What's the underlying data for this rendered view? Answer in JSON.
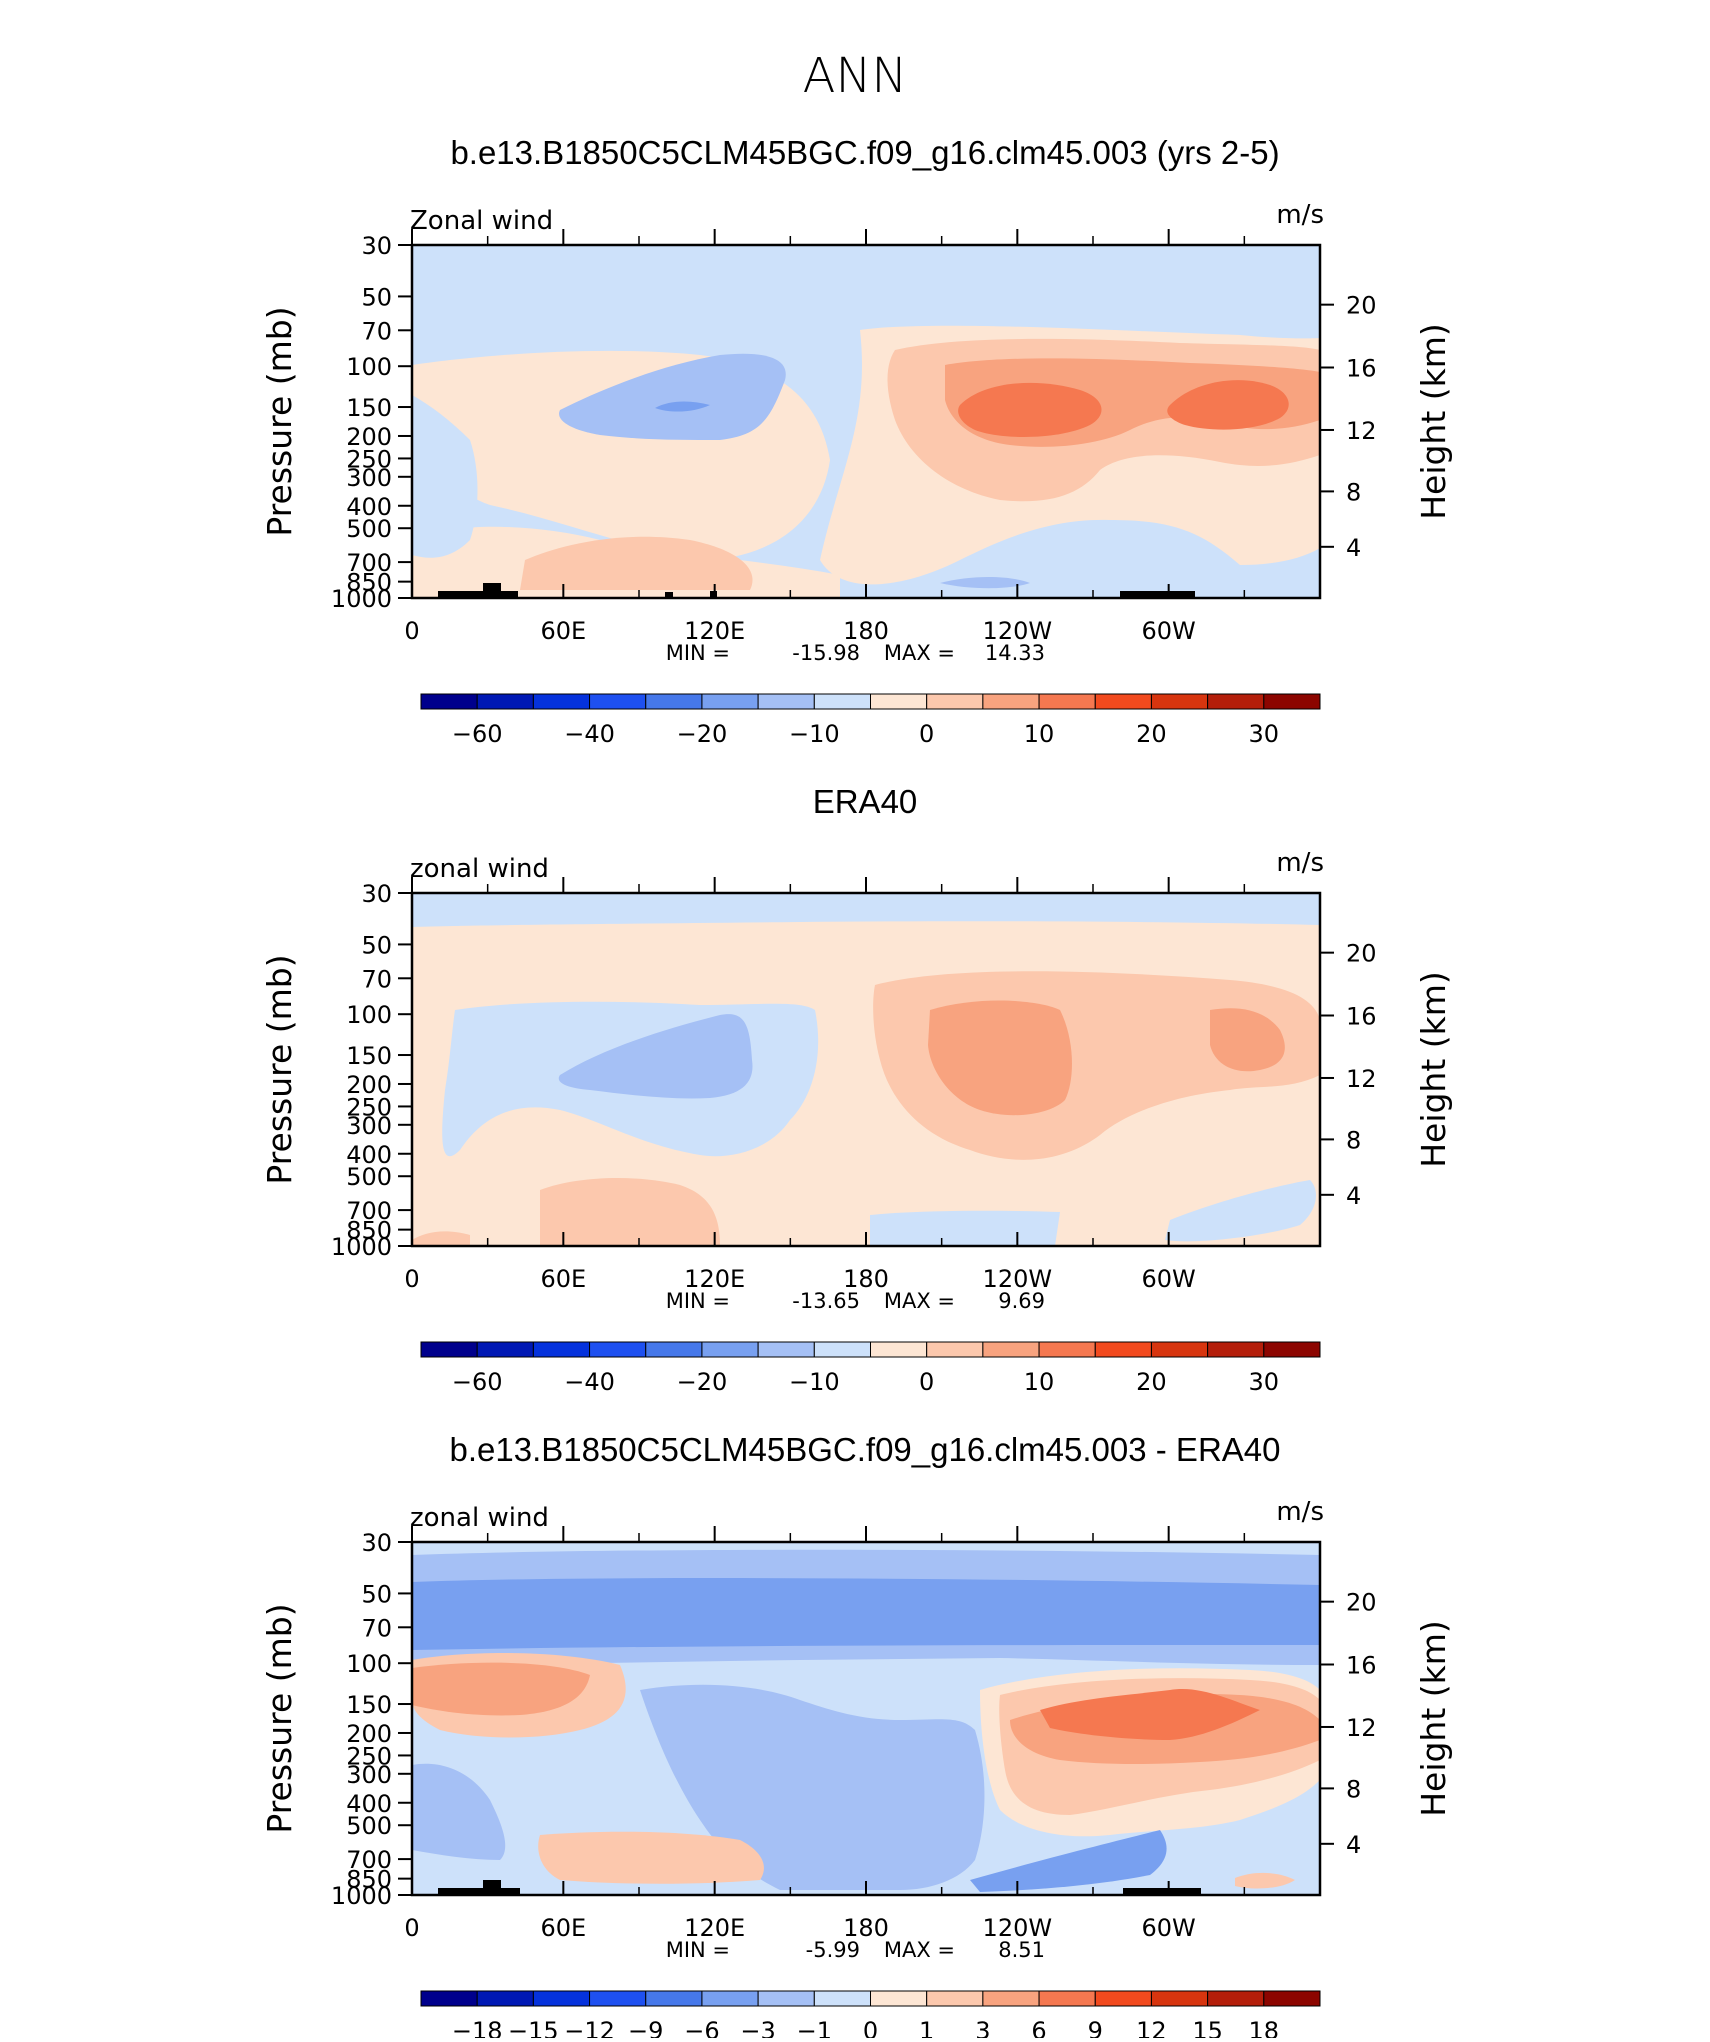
{
  "page_title": "ANN",
  "chart_data": [
    {
      "type": "heatmap",
      "title": "b.e13.B1850C5CLM45BGC.f09_g16.clm45.003 (yrs 2-5)",
      "variable": "Zonal wind",
      "units": "m/s",
      "ylabel": "Pressure (mb)",
      "ylabel_right": "Height (km)",
      "x_ticks": [
        "0",
        "60E",
        "120E",
        "180",
        "120W",
        "60W"
      ],
      "y_ticks": [
        "30",
        "50",
        "70",
        "100",
        "150",
        "200",
        "250",
        "300",
        "400",
        "500",
        "700",
        "850",
        "1000"
      ],
      "y_ticks_right": [
        "20",
        "16",
        "12",
        "8",
        "4"
      ],
      "min": "-15.98",
      "max": "14.33",
      "stats_text": {
        "min_label": "MIN =",
        "min": "-15.98",
        "max_label": "MAX =",
        "max": "14.33"
      },
      "colorbar": {
        "levels": [
          -70,
          -60,
          -50,
          -40,
          -30,
          -20,
          -15,
          -10,
          -5,
          0,
          5,
          10,
          15,
          20,
          25,
          30,
          40
        ],
        "labels": [
          "−60",
          "−40",
          "−20",
          "−10",
          "0",
          "10",
          "20",
          "30"
        ]
      }
    },
    {
      "type": "heatmap",
      "title": "ERA40",
      "variable": "zonal wind",
      "units": "m/s",
      "ylabel": "Pressure (mb)",
      "ylabel_right": "Height (km)",
      "x_ticks": [
        "0",
        "60E",
        "120E",
        "180",
        "120W",
        "60W"
      ],
      "y_ticks": [
        "30",
        "50",
        "70",
        "100",
        "150",
        "200",
        "250",
        "300",
        "400",
        "500",
        "700",
        "850",
        "1000"
      ],
      "y_ticks_right": [
        "20",
        "16",
        "12",
        "8",
        "4"
      ],
      "min": "-13.65",
      "max": "9.69",
      "stats_text": {
        "min_label": "MIN =",
        "min": "-13.65",
        "max_label": "MAX =",
        "max": "9.69"
      },
      "colorbar": {
        "levels": [
          -70,
          -60,
          -50,
          -40,
          -30,
          -20,
          -15,
          -10,
          -5,
          0,
          5,
          10,
          15,
          20,
          25,
          30,
          40
        ],
        "labels": [
          "−60",
          "−40",
          "−20",
          "−10",
          "0",
          "10",
          "20",
          "30"
        ]
      }
    },
    {
      "type": "heatmap",
      "title": "b.e13.B1850C5CLM45BGC.f09_g16.clm45.003 - ERA40",
      "variable": "zonal wind",
      "units": "m/s",
      "ylabel": "Pressure (mb)",
      "ylabel_right": "Height (km)",
      "x_ticks": [
        "0",
        "60E",
        "120E",
        "180",
        "120W",
        "60W"
      ],
      "y_ticks": [
        "30",
        "50",
        "70",
        "100",
        "150",
        "200",
        "250",
        "300",
        "400",
        "500",
        "700",
        "850",
        "1000"
      ],
      "y_ticks_right": [
        "20",
        "16",
        "12",
        "8",
        "4"
      ],
      "min": "-5.99",
      "max": "8.51",
      "stats_text": {
        "min_label": "MIN =",
        "min": "-5.99",
        "max_label": "MAX =",
        "max": "8.51"
      },
      "colorbar": {
        "levels": [
          -21,
          -18,
          -15,
          -12,
          -9,
          -6,
          -3,
          -1,
          0,
          1,
          3,
          6,
          9,
          12,
          15,
          18,
          21
        ],
        "labels": [
          "−18",
          "−15",
          "−12",
          "−9",
          "−6",
          "−3",
          "−1",
          "0",
          "1",
          "3",
          "6",
          "9",
          "12",
          "15",
          "18"
        ]
      }
    }
  ],
  "colors": [
    "#00008c",
    "#0018b4",
    "#0532dc",
    "#1e50f0",
    "#4678ea",
    "#78a0f0",
    "#a5c0f5",
    "#cde1fa",
    "#fde6d4",
    "#fcc8ad",
    "#f8a37f",
    "#f57850",
    "#f24a1e",
    "#d7350f",
    "#b41e0a",
    "#8c0500"
  ]
}
